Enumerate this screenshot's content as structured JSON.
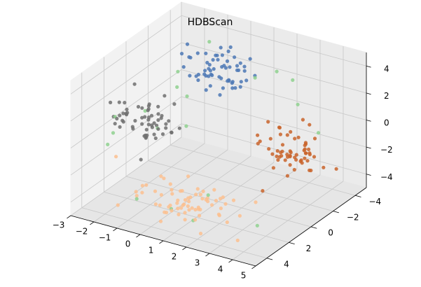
{
  "chart_data": {
    "type": "scatter",
    "projection": "3d",
    "title": "HDBScan",
    "xlabel": "",
    "ylabel": "",
    "zlabel": "",
    "xlim": [
      -3,
      5
    ],
    "ylim": [
      -5,
      5
    ],
    "zlim": [
      -5,
      5
    ],
    "x_ticks": [
      -3,
      -2,
      -1,
      0,
      1,
      2,
      3,
      4,
      5
    ],
    "y_ticks": [
      -4,
      -2,
      0,
      2,
      4
    ],
    "z_ticks": [
      -4,
      -2,
      0,
      2,
      4
    ],
    "x_tick_labels": [
      "−3",
      "−2",
      "−1",
      "0",
      "1",
      "2",
      "3",
      "4",
      "5"
    ],
    "y_tick_labels": [
      "−4",
      "−2",
      "0",
      "2",
      "4"
    ],
    "z_tick_labels": [
      "−4",
      "−2",
      "0",
      "2",
      "4"
    ],
    "grid": true,
    "clusters": [
      {
        "color": "#4c78b5",
        "center": [
          0.5,
          -1,
          4
        ],
        "spread": [
          0.8,
          0.6,
          0.7
        ],
        "count": 60
      },
      {
        "color": "#707070",
        "center": [
          -2,
          0.5,
          0
        ],
        "spread": [
          0.7,
          0.7,
          0.8
        ],
        "count": 60
      },
      {
        "color": "#fcc08f",
        "center": [
          1,
          2,
          -4
        ],
        "spread": [
          1.2,
          0.8,
          0.6
        ],
        "count": 70
      },
      {
        "color": "#c9642b",
        "center": [
          4,
          0,
          0
        ],
        "spread": [
          0.6,
          0.7,
          0.8
        ],
        "count": 60
      }
    ],
    "noise_color": "#8fd18f",
    "noise_points": [
      [
        -3,
        1,
        0
      ],
      [
        -2.7,
        1.8,
        -0.6
      ],
      [
        -1,
        -0.5,
        3.4
      ],
      [
        -0.7,
        0.2,
        2.8
      ],
      [
        -1.4,
        0.5,
        -0.4
      ],
      [
        2.8,
        -1.5,
        4.6
      ],
      [
        3.2,
        -2.1,
        3.8
      ],
      [
        -0.5,
        -2.3,
        4.8
      ],
      [
        0.2,
        2.6,
        -4.4
      ],
      [
        -1.2,
        2.8,
        -4.2
      ],
      [
        1.7,
        2.4,
        -2.8
      ],
      [
        -1.6,
        1.2,
        1.2
      ],
      [
        4.6,
        -1.5,
        0.9
      ],
      [
        4.4,
        3.6,
        -3.1
      ],
      [
        -0.7,
        -0.7,
        1.6
      ],
      [
        2.1,
        -1,
        4.1
      ],
      [
        1.1,
        2.5,
        -4.9
      ],
      [
        -0.3,
        0.2,
        0.1
      ],
      [
        3.9,
        -1.1,
        2.9
      ],
      [
        -2.6,
        2.5,
        -1
      ]
    ]
  }
}
